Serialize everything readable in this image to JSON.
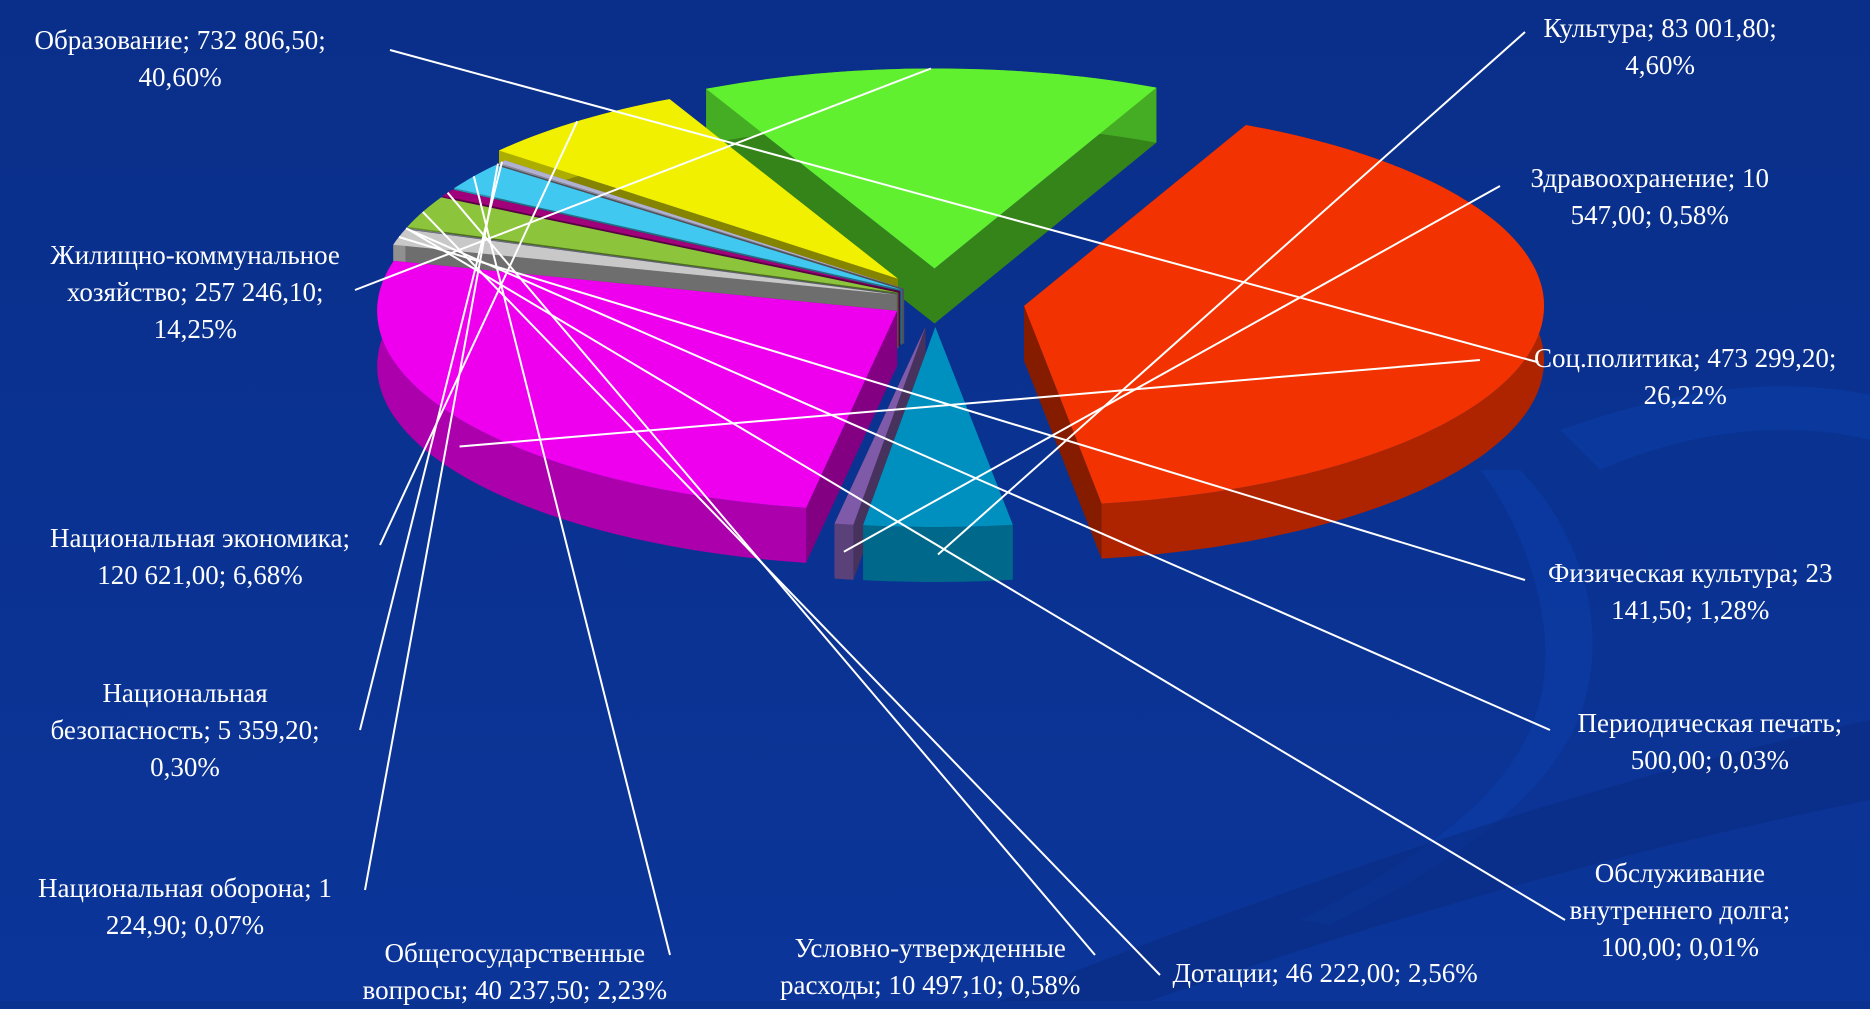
{
  "colors": {
    "background": "#0a3290",
    "leader": "#ffffff"
  },
  "chart_data": {
    "type": "pie",
    "title": "",
    "legend": "none",
    "series": [
      {
        "id": "obrazovanie",
        "label": [
          "Образование; 732 806,50;",
          "40,60%"
        ],
        "value": 732806.5,
        "percent": 40.6,
        "color": "#f23200"
      },
      {
        "id": "kultura",
        "label": [
          "Культура; 83 001,80;",
          "4,60%"
        ],
        "value": 83001.8,
        "percent": 4.6,
        "color": "#0090c0"
      },
      {
        "id": "zdravookhranenie",
        "label": [
          "Здравоохранение; 10",
          "547,00; 0,58%"
        ],
        "value": 10547.0,
        "percent": 0.58,
        "color": "#7f5aa8"
      },
      {
        "id": "socpolitika",
        "label": [
          "Соц.политика; 473 299,20;",
          "26,22%"
        ],
        "value": 473299.2,
        "percent": 26.22,
        "color": "#ee00ee"
      },
      {
        "id": "fizkultura",
        "label": [
          "Физическая культура; 23",
          "141,50; 1,28%"
        ],
        "value": 23141.5,
        "percent": 1.28,
        "color": "#c8c8c8"
      },
      {
        "id": "pechat",
        "label": [
          "Периодическая печать;",
          "500,00; 0,03%"
        ],
        "value": 500.0,
        "percent": 0.03,
        "color": "#a0a0c0"
      },
      {
        "id": "dolg",
        "label": [
          "Обслуживание",
          "внутреннего долга;",
          "100,00; 0,01%"
        ],
        "value": 100.0,
        "percent": 0.01,
        "color": "#6070a0"
      },
      {
        "id": "dotacii",
        "label": [
          "Дотации; 46 222,00; 2,56%"
        ],
        "value": 46222.0,
        "percent": 2.56,
        "color": "#8cc43c"
      },
      {
        "id": "uslovno",
        "label": [
          "Условно-утвержденные",
          "расходы; 10 497,10; 0,58%"
        ],
        "value": 10497.1,
        "percent": 0.58,
        "color": "#a0007a"
      },
      {
        "id": "obshchegos",
        "label": [
          "Общегосударственные",
          "вопросы; 40 237,50; 2,23%"
        ],
        "value": 40237.5,
        "percent": 2.23,
        "color": "#40c8f0"
      },
      {
        "id": "oborona",
        "label": [
          "Национальная оборона; 1",
          "224,90; 0,07%"
        ],
        "value": 1224.9,
        "percent": 0.07,
        "color": "#9090a0"
      },
      {
        "id": "bezopasnost",
        "label": [
          "Национальная",
          "безопасность; 5 359,20;",
          "0,30%"
        ],
        "value": 5359.2,
        "percent": 0.3,
        "color": "#b0b0d0"
      },
      {
        "id": "ekonomika",
        "label": [
          "Национальная экономика;",
          "120 621,00; 6,68%"
        ],
        "value": 120621.0,
        "percent": 6.68,
        "color": "#f0f000"
      },
      {
        "id": "zhkh",
        "label": [
          "Жилищно-коммунальное",
          "хозяйство; 257 246,10;",
          "14,25%"
        ],
        "value": 257246.1,
        "percent": 14.25,
        "color": "#60f030"
      }
    ]
  }
}
